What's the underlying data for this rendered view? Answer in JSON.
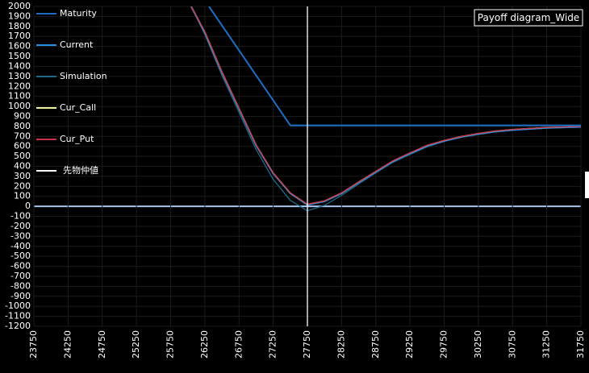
{
  "chart_data": {
    "type": "line",
    "title": "Payoff diagram_Wide",
    "xlim": [
      23750,
      31750
    ],
    "xticks": [
      23750,
      24250,
      24750,
      25250,
      25750,
      26250,
      26750,
      27250,
      27750,
      28250,
      28750,
      29250,
      29750,
      30250,
      30750,
      31250,
      31750
    ],
    "ylim": [
      -1200,
      2000
    ],
    "yticks": [
      -1200,
      -1100,
      -1000,
      -900,
      -800,
      -700,
      -600,
      -500,
      -400,
      -300,
      -200,
      -100,
      0,
      100,
      200,
      300,
      400,
      500,
      600,
      700,
      800,
      900,
      1000,
      1100,
      1200,
      1300,
      1400,
      1500,
      1600,
      1700,
      1800,
      1900,
      2000
    ],
    "grid": true,
    "series": [
      {
        "name": "Maturity",
        "color": "#1a6fc4",
        "x": [
          26310,
          27500,
          31750
        ],
        "values": [
          2000,
          810,
          810
        ]
      },
      {
        "name": "Current",
        "color": "#2a8ee0",
        "x": [
          26050,
          26250,
          26500,
          26750,
          27000,
          27250,
          27500,
          27750,
          28000,
          28250,
          28500,
          28750,
          29000,
          29250,
          29500,
          29750,
          30000,
          30250,
          30500,
          30750,
          31000,
          31250,
          31500,
          31750
        ],
        "values": [
          2000,
          1740,
          1340,
          975,
          610,
          330,
          130,
          15,
          50,
          130,
          240,
          345,
          450,
          530,
          605,
          655,
          695,
          725,
          750,
          765,
          775,
          785,
          790,
          795
        ]
      },
      {
        "name": "Simulation",
        "color": "#1e6a8a",
        "x": [
          26050,
          26250,
          26500,
          26750,
          27000,
          27250,
          27500,
          27750,
          28000,
          28250,
          28500,
          28750,
          29000,
          29250,
          29500,
          29750,
          30000,
          30250,
          30500,
          30750,
          31000,
          31250,
          31500,
          31750
        ],
        "values": [
          2000,
          1720,
          1310,
          940,
          570,
          270,
          60,
          -45,
          10,
          110,
          225,
          335,
          440,
          520,
          595,
          650,
          690,
          720,
          745,
          760,
          772,
          782,
          788,
          793
        ]
      },
      {
        "name": "Cur_Call",
        "color": "#f0f0a0",
        "x": [
          26050,
          26250,
          26500,
          26750,
          27000,
          27250,
          27500,
          27750,
          28000,
          28250,
          28500,
          28750,
          29000,
          29250,
          29500,
          29750,
          30000,
          30250,
          30500,
          30750,
          31000,
          31250,
          31500,
          31750
        ],
        "values": [
          2000,
          1745,
          1345,
          980,
          615,
          335,
          135,
          20,
          55,
          135,
          245,
          350,
          455,
          535,
          610,
          660,
          700,
          730,
          755,
          770,
          780,
          790,
          795,
          800
        ]
      },
      {
        "name": "Cur_Put",
        "color": "#c83048",
        "x": [
          26050,
          26250,
          26500,
          26750,
          27000,
          27250,
          27500,
          27750,
          28000,
          28250,
          28500,
          28750,
          29000,
          29250,
          29500,
          29750,
          30000,
          30250,
          30500,
          30750,
          31000,
          31250,
          31500,
          31750
        ],
        "values": [
          2000,
          1745,
          1345,
          980,
          615,
          335,
          135,
          20,
          55,
          135,
          245,
          350,
          455,
          535,
          610,
          660,
          700,
          730,
          755,
          770,
          780,
          790,
          795,
          800
        ]
      },
      {
        "name": "先物仲値",
        "color": "#ffffff",
        "x": [
          27750,
          27750
        ],
        "values": [
          -1200,
          2000
        ]
      }
    ]
  }
}
